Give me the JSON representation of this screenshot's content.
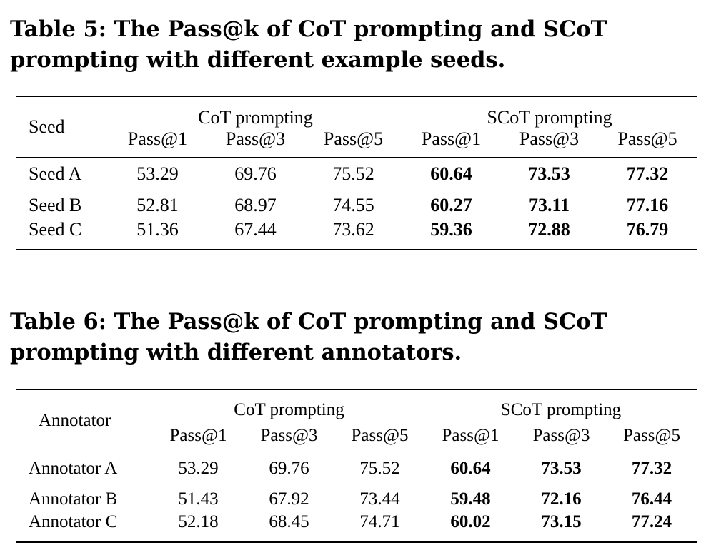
{
  "tables": [
    {
      "caption": "Table 5: The Pass@k of CoT prompting and SCoT prompting with different example seeds.",
      "row_header": "Seed",
      "groups": [
        "CoT prompting",
        "SCoT prompting"
      ],
      "subheaders": [
        "Pass@1",
        "Pass@3",
        "Pass@5",
        "Pass@1",
        "Pass@3",
        "Pass@5"
      ],
      "rows": [
        {
          "label": "Seed A",
          "cells": [
            "53.29",
            "69.76",
            "75.52",
            "60.64",
            "73.53",
            "77.32"
          ]
        },
        {
          "label": "Seed B",
          "cells": [
            "52.81",
            "68.97",
            "74.55",
            "60.27",
            "73.11",
            "77.16"
          ]
        },
        {
          "label": "Seed C",
          "cells": [
            "51.36",
            "67.44",
            "73.62",
            "59.36",
            "72.88",
            "76.79"
          ]
        }
      ]
    },
    {
      "caption": "Table 6: The Pass@k of CoT prompting and SCoT prompting with different annotators.",
      "row_header": "Annotator",
      "groups": [
        "CoT prompting",
        "SCoT prompting"
      ],
      "subheaders": [
        "Pass@1",
        "Pass@3",
        "Pass@5",
        "Pass@1",
        "Pass@3",
        "Pass@5"
      ],
      "rows": [
        {
          "label": "Annotator A",
          "cells": [
            "53.29",
            "69.76",
            "75.52",
            "60.64",
            "73.53",
            "77.32"
          ]
        },
        {
          "label": "Annotator B",
          "cells": [
            "51.43",
            "67.92",
            "73.44",
            "59.48",
            "72.16",
            "76.44"
          ]
        },
        {
          "label": "Annotator C",
          "cells": [
            "52.18",
            "68.45",
            "74.71",
            "60.02",
            "73.15",
            "77.24"
          ]
        }
      ]
    }
  ]
}
